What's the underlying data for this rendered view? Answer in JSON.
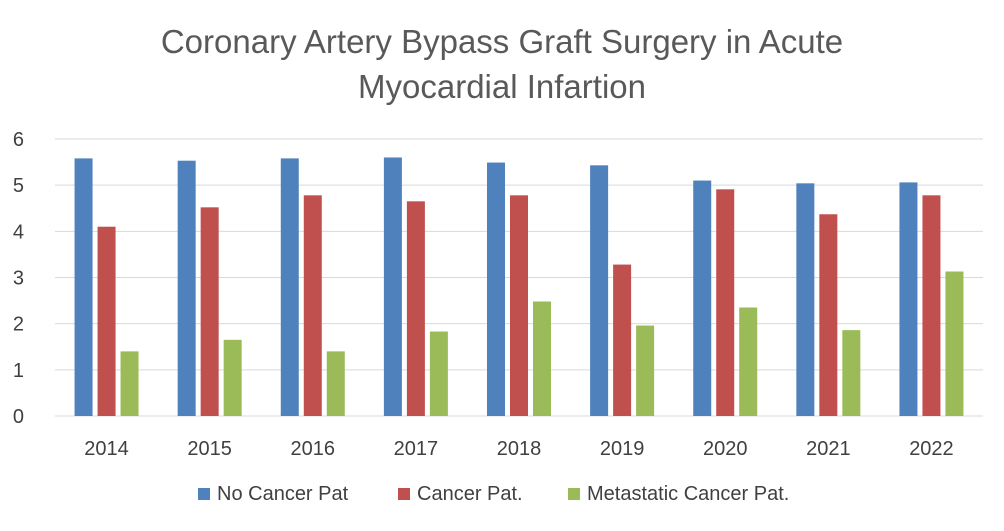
{
  "chart_data": {
    "type": "bar",
    "title": "Coronary Artery Bypass Graft Surgery in Acute Myocardial Infartion",
    "title_lines": [
      "Coronary Artery Bypass Graft Surgery in Acute",
      "Myocardial Infartion"
    ],
    "xlabel": "",
    "ylabel": "",
    "ylim": [
      0,
      6
    ],
    "yticks": [
      "0",
      "1",
      "2",
      "3",
      "4",
      "5",
      "6"
    ],
    "grid": true,
    "legend_position": "bottom",
    "categories": [
      "2014",
      "2015",
      "2016",
      "2017",
      "2018",
      "2019",
      "2020",
      "2021",
      "2022"
    ],
    "series": [
      {
        "name": "No Cancer Pat",
        "color": "#4f81bd",
        "values": [
          5.58,
          5.53,
          5.58,
          5.6,
          5.49,
          5.43,
          5.1,
          5.04,
          5.06
        ]
      },
      {
        "name": "Cancer Pat.",
        "color": "#c0504d",
        "values": [
          4.1,
          4.52,
          4.78,
          4.65,
          4.78,
          3.28,
          4.91,
          4.37,
          4.78
        ]
      },
      {
        "name": "Metastatic Cancer Pat.",
        "color": "#9bbb59",
        "values": [
          1.4,
          1.65,
          1.4,
          1.83,
          2.48,
          1.96,
          2.35,
          1.86,
          3.13
        ]
      }
    ]
  }
}
